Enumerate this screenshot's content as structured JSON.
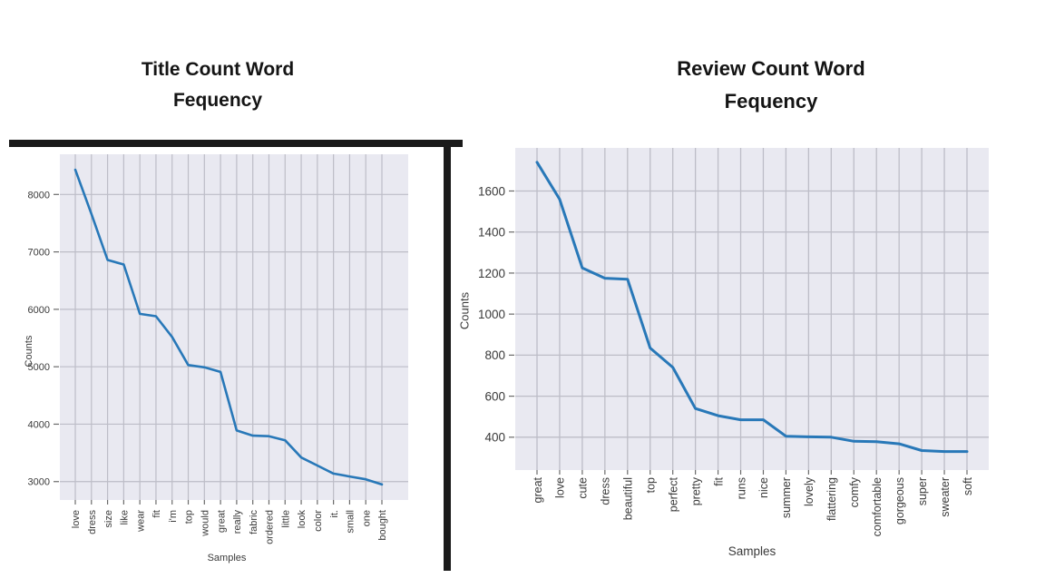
{
  "colors": {
    "plot_background": "#e9e9f1",
    "gridline": "#bdbdc7",
    "tick_mark": "#6a6a6a",
    "tick_text": "#3a3a3a",
    "axis_label_text": "#3a3a3a",
    "title_text": "#141414",
    "frame": "#1a1a1a",
    "line_blue": "#2878b8"
  },
  "chart_data": [
    {
      "type": "line",
      "title": "Title Count Word\nFequency",
      "xlabel": "Samples",
      "ylabel": "Counts",
      "legend": null,
      "grid": true,
      "categories": [
        "love",
        "dress",
        "size",
        "like",
        "wear",
        "fit",
        "i'm",
        "top",
        "would",
        "great",
        "really",
        "fabric",
        "ordered",
        "little",
        "look",
        "color",
        "it.",
        "small",
        "one",
        "bought"
      ],
      "values": [
        8430,
        7660,
        6860,
        6780,
        5920,
        5880,
        5520,
        5030,
        4990,
        4910,
        3890,
        3800,
        3790,
        3720,
        3420,
        3280,
        3140,
        3090,
        3040,
        2950
      ],
      "yticks": [
        3000,
        4000,
        5000,
        6000,
        7000,
        8000
      ],
      "ylim": [
        2680,
        8700
      ],
      "line_color": "#2878b8"
    },
    {
      "type": "line",
      "title": "Review Count Word\nFequency",
      "xlabel": "Samples",
      "ylabel": "Counts",
      "legend": null,
      "grid": true,
      "categories": [
        "great",
        "love",
        "cute",
        "dress",
        "beautiful",
        "top",
        "perfect",
        "pretty",
        "fit",
        "runs",
        "nice",
        "summer",
        "lovely",
        "flattering",
        "comfy",
        "comfortable",
        "gorgeous",
        "super",
        "sweater",
        "soft"
      ],
      "values": [
        1740,
        1560,
        1225,
        1175,
        1170,
        835,
        740,
        540,
        505,
        485,
        485,
        405,
        402,
        400,
        380,
        378,
        368,
        335,
        330,
        330
      ],
      "yticks": [
        400,
        600,
        800,
        1000,
        1200,
        1400,
        1600
      ],
      "ylim": [
        240,
        1810
      ],
      "line_color": "#2878b8"
    }
  ]
}
